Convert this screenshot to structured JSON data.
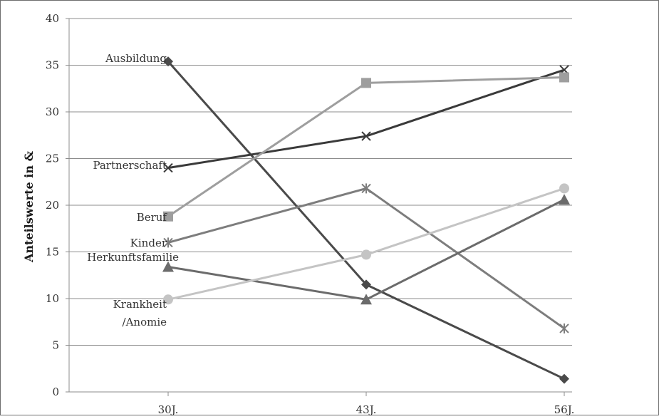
{
  "chart_data": {
    "type": "line",
    "title": "",
    "xlabel": "",
    "ylabel": "Anteilswerte in &",
    "categories": [
      "30J.",
      "43J.",
      "56J."
    ],
    "ylim": [
      0,
      40
    ],
    "yticks": [
      0,
      5,
      10,
      15,
      20,
      25,
      30,
      35,
      40
    ],
    "grid": "horizontal",
    "legend": "inline-left",
    "series": [
      {
        "name": "Ausbildung",
        "values": [
          35.4,
          11.5,
          1.4
        ],
        "color": "#4a4a4a",
        "marker": "diamond"
      },
      {
        "name": "Partnerschaft",
        "values": [
          24.0,
          27.4,
          34.5
        ],
        "color": "#3a3a3a",
        "marker": "x"
      },
      {
        "name": "Beruf",
        "values": [
          18.8,
          33.1,
          33.7
        ],
        "color": "#9e9e9e",
        "marker": "square"
      },
      {
        "name": "Kinder",
        "values": [
          16.0,
          21.8,
          6.8
        ],
        "color": "#7d7d7d",
        "marker": "star"
      },
      {
        "name": "Herkunftsfamilie",
        "values": [
          13.4,
          9.9,
          20.6
        ],
        "color": "#6b6b6b",
        "marker": "triangle"
      },
      {
        "name": "Krankheit /Anomie",
        "label_lines": [
          "Krankheit",
          "/Anomie"
        ],
        "values": [
          9.9,
          14.7,
          21.8
        ],
        "color": "#c4c4c4",
        "marker": "circle"
      }
    ]
  }
}
